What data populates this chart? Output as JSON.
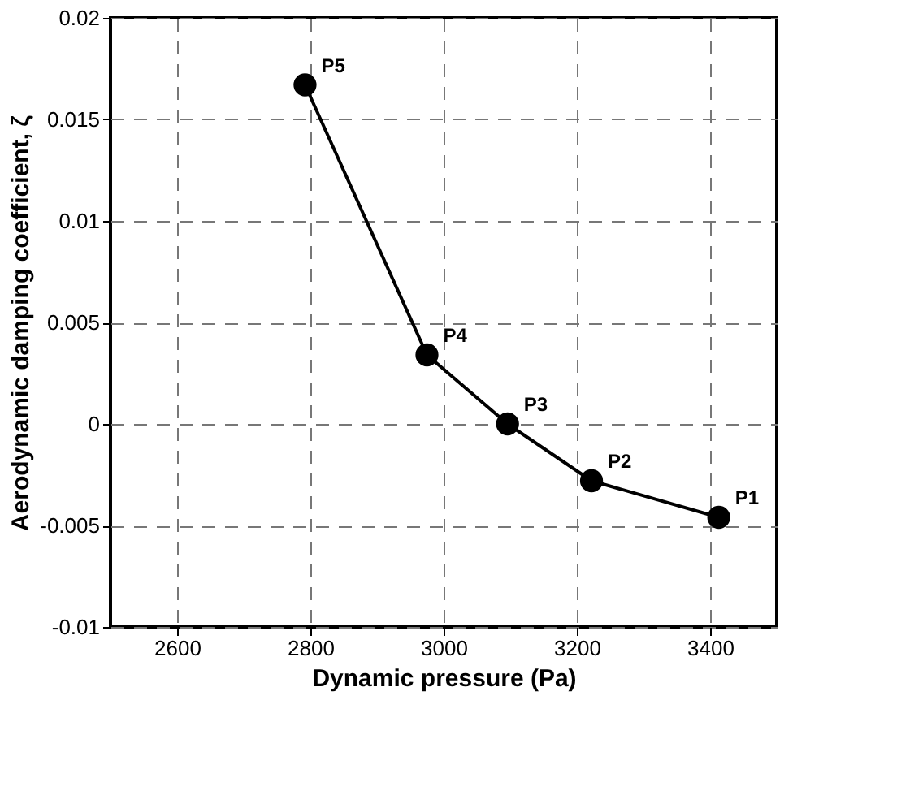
{
  "chart_data": {
    "type": "line",
    "x": [
      2792,
      2975,
      3096,
      3222,
      3413
    ],
    "series": [
      {
        "color": "#000000",
        "values": [
          0.0167,
          0.0034,
          0.0,
          -0.0028,
          -0.0046
        ]
      }
    ],
    "xlabel": "Dynamic pressure (Pa)",
    "ylabel": "Aerodynamic damping coefficient, ζ",
    "xlim": [
      2500,
      3500
    ],
    "xticks": [
      2600,
      2800,
      3000,
      3200,
      3400
    ],
    "ylim": [
      -0.01,
      0.02
    ],
    "yticks": [
      -0.01,
      -0.005,
      0,
      0.005,
      0.01,
      0.015,
      0.02
    ],
    "annotations": [
      {
        "text": "P5",
        "x": 2792,
        "y": 0.0167
      },
      {
        "text": "P4",
        "x": 2975,
        "y": 0.0034
      },
      {
        "text": "P3",
        "x": 3096,
        "y": 0.0
      },
      {
        "text": "P2",
        "x": 3222,
        "y": -0.0028
      },
      {
        "text": "P1",
        "x": 3413,
        "y": -0.0046
      }
    ],
    "grid": true,
    "marker": "circle",
    "line_style": "solid"
  }
}
